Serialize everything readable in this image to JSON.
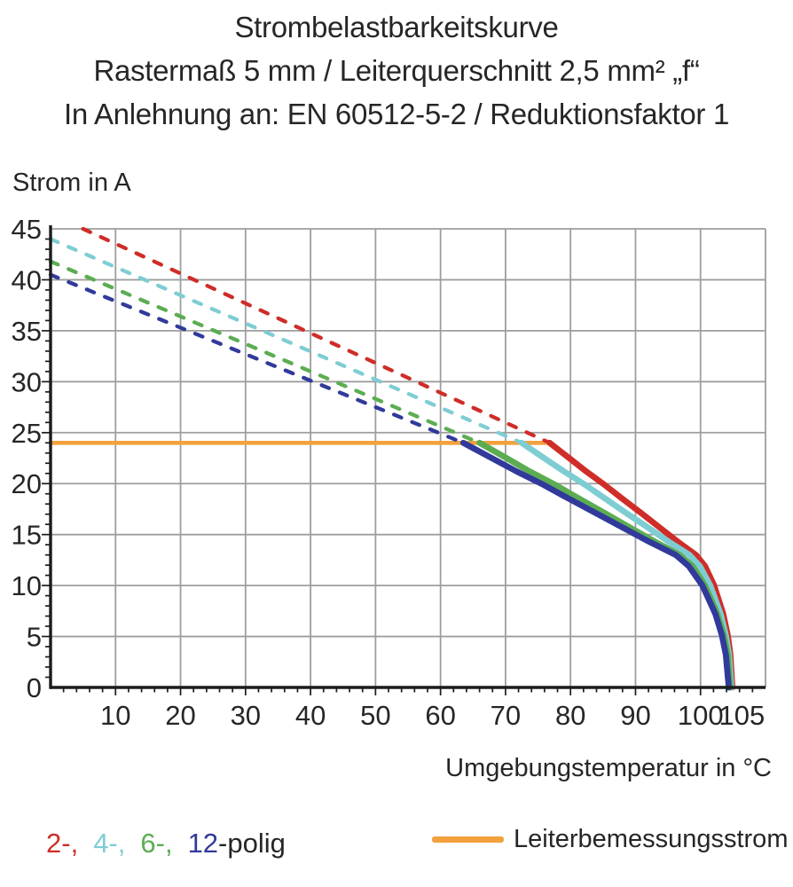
{
  "header": {
    "line1": "Strombelastbarkeitskurve",
    "line2": "Rastermaß 5 mm / Leiterquerschnitt 2,5 mm² „f“",
    "line3": "In Anlehnung an: EN 60512-5-2 / Reduktionsfaktor 1"
  },
  "chart_data": {
    "type": "line",
    "title": "Strombelastbarkeitskurve",
    "ylabel": "Strom in A",
    "xlabel": "Umgebungstemperatur in °C",
    "xlim": [
      0,
      110
    ],
    "ylim": [
      0,
      45
    ],
    "grid": true,
    "x_tick_values": [
      10,
      20,
      30,
      40,
      50,
      60,
      70,
      80,
      90,
      100,
      105
    ],
    "x_gridlines": [
      10,
      20,
      30,
      40,
      50,
      60,
      70,
      80,
      90,
      100,
      110
    ],
    "y_tick_values": [
      0,
      5,
      10,
      15,
      20,
      25,
      30,
      35,
      40,
      45
    ],
    "y_gridlines": [
      5,
      10,
      15,
      20,
      25,
      30,
      35,
      40,
      45
    ],
    "x_minor_step": 2,
    "y_minor_step": 1,
    "colors": {
      "grid": "#9e9e9e",
      "axis": "#1c1c1c"
    },
    "rated_current": {
      "label": "Leiterbemessungsstrom",
      "value": 24,
      "x_start": 0,
      "x_end": 76.8,
      "color": "#f2a13c"
    },
    "series": [
      {
        "name": "2-polig",
        "poles": 2,
        "color": "#cf2d28",
        "dashed": {
          "x": [
            5,
            76.8
          ],
          "y": [
            45,
            24
          ]
        },
        "solid": {
          "x": [
            76.8,
            79.6,
            82.4,
            85.2,
            88.0,
            90.9,
            93.7,
            96.5,
            99.3,
            100.7,
            102.1,
            103.5,
            104.2,
            104.6,
            104.9
          ],
          "y": [
            24,
            22.6,
            21.2,
            19.9,
            18.5,
            17.1,
            15.7,
            14.3,
            13.0,
            11.9,
            10.0,
            7.2,
            5.1,
            3.2,
            0
          ]
        }
      },
      {
        "name": "4-polig",
        "poles": 4,
        "color": "#7ecdd3",
        "dashed": {
          "x": [
            0,
            72.5
          ],
          "y": [
            44,
            24
          ]
        },
        "solid": {
          "x": [
            72.5,
            75.7,
            79.0,
            82.2,
            85.4,
            88.6,
            91.9,
            95.1,
            98.3,
            99.9,
            101.5,
            103.1,
            103.9,
            104.4,
            104.75
          ],
          "y": [
            24,
            22.6,
            21.2,
            19.9,
            18.5,
            17.1,
            15.7,
            14.3,
            13.0,
            11.9,
            10.0,
            7.2,
            5.1,
            3.2,
            0
          ]
        }
      },
      {
        "name": "6-polig",
        "poles": 6,
        "color": "#5cad52",
        "dashed": {
          "x": [
            0,
            66
          ],
          "y": [
            41.8,
            24
          ]
        },
        "solid": {
          "x": [
            66,
            69.9,
            73.7,
            77.6,
            81.4,
            85.3,
            89.1,
            93.0,
            96.8,
            98.8,
            100.7,
            102.6,
            103.6,
            104.2,
            104.55
          ],
          "y": [
            24,
            22.6,
            21.2,
            19.9,
            18.5,
            17.1,
            15.7,
            14.3,
            13.0,
            11.9,
            10.0,
            7.2,
            5.1,
            3.2,
            0
          ]
        }
      },
      {
        "name": "12-polig",
        "poles": 12,
        "color": "#313a9b",
        "dashed": {
          "x": [
            0,
            63.5
          ],
          "y": [
            40.5,
            24
          ]
        },
        "solid": {
          "x": [
            63.5,
            67.6,
            71.7,
            75.8,
            79.8,
            83.9,
            88.0,
            92.1,
            96.2,
            98.2,
            100.3,
            102.3,
            103.3,
            103.9,
            104.35
          ],
          "y": [
            24,
            22.6,
            21.2,
            19.9,
            18.5,
            17.1,
            15.7,
            14.3,
            13.0,
            11.9,
            10.0,
            7.2,
            5.1,
            3.2,
            0
          ]
        }
      }
    ]
  },
  "legend": {
    "pole_items": [
      {
        "label": "2-,",
        "color": "#cf2d28"
      },
      {
        "label": "4-,",
        "color": "#7ecdd3"
      },
      {
        "label": "6-,",
        "color": "#5cad52"
      },
      {
        "label": "12",
        "color": "#313a9b"
      }
    ],
    "pole_suffix": "-polig",
    "rated": {
      "label": "Leiterbemessungsstrom",
      "color": "#f2a13c"
    }
  }
}
